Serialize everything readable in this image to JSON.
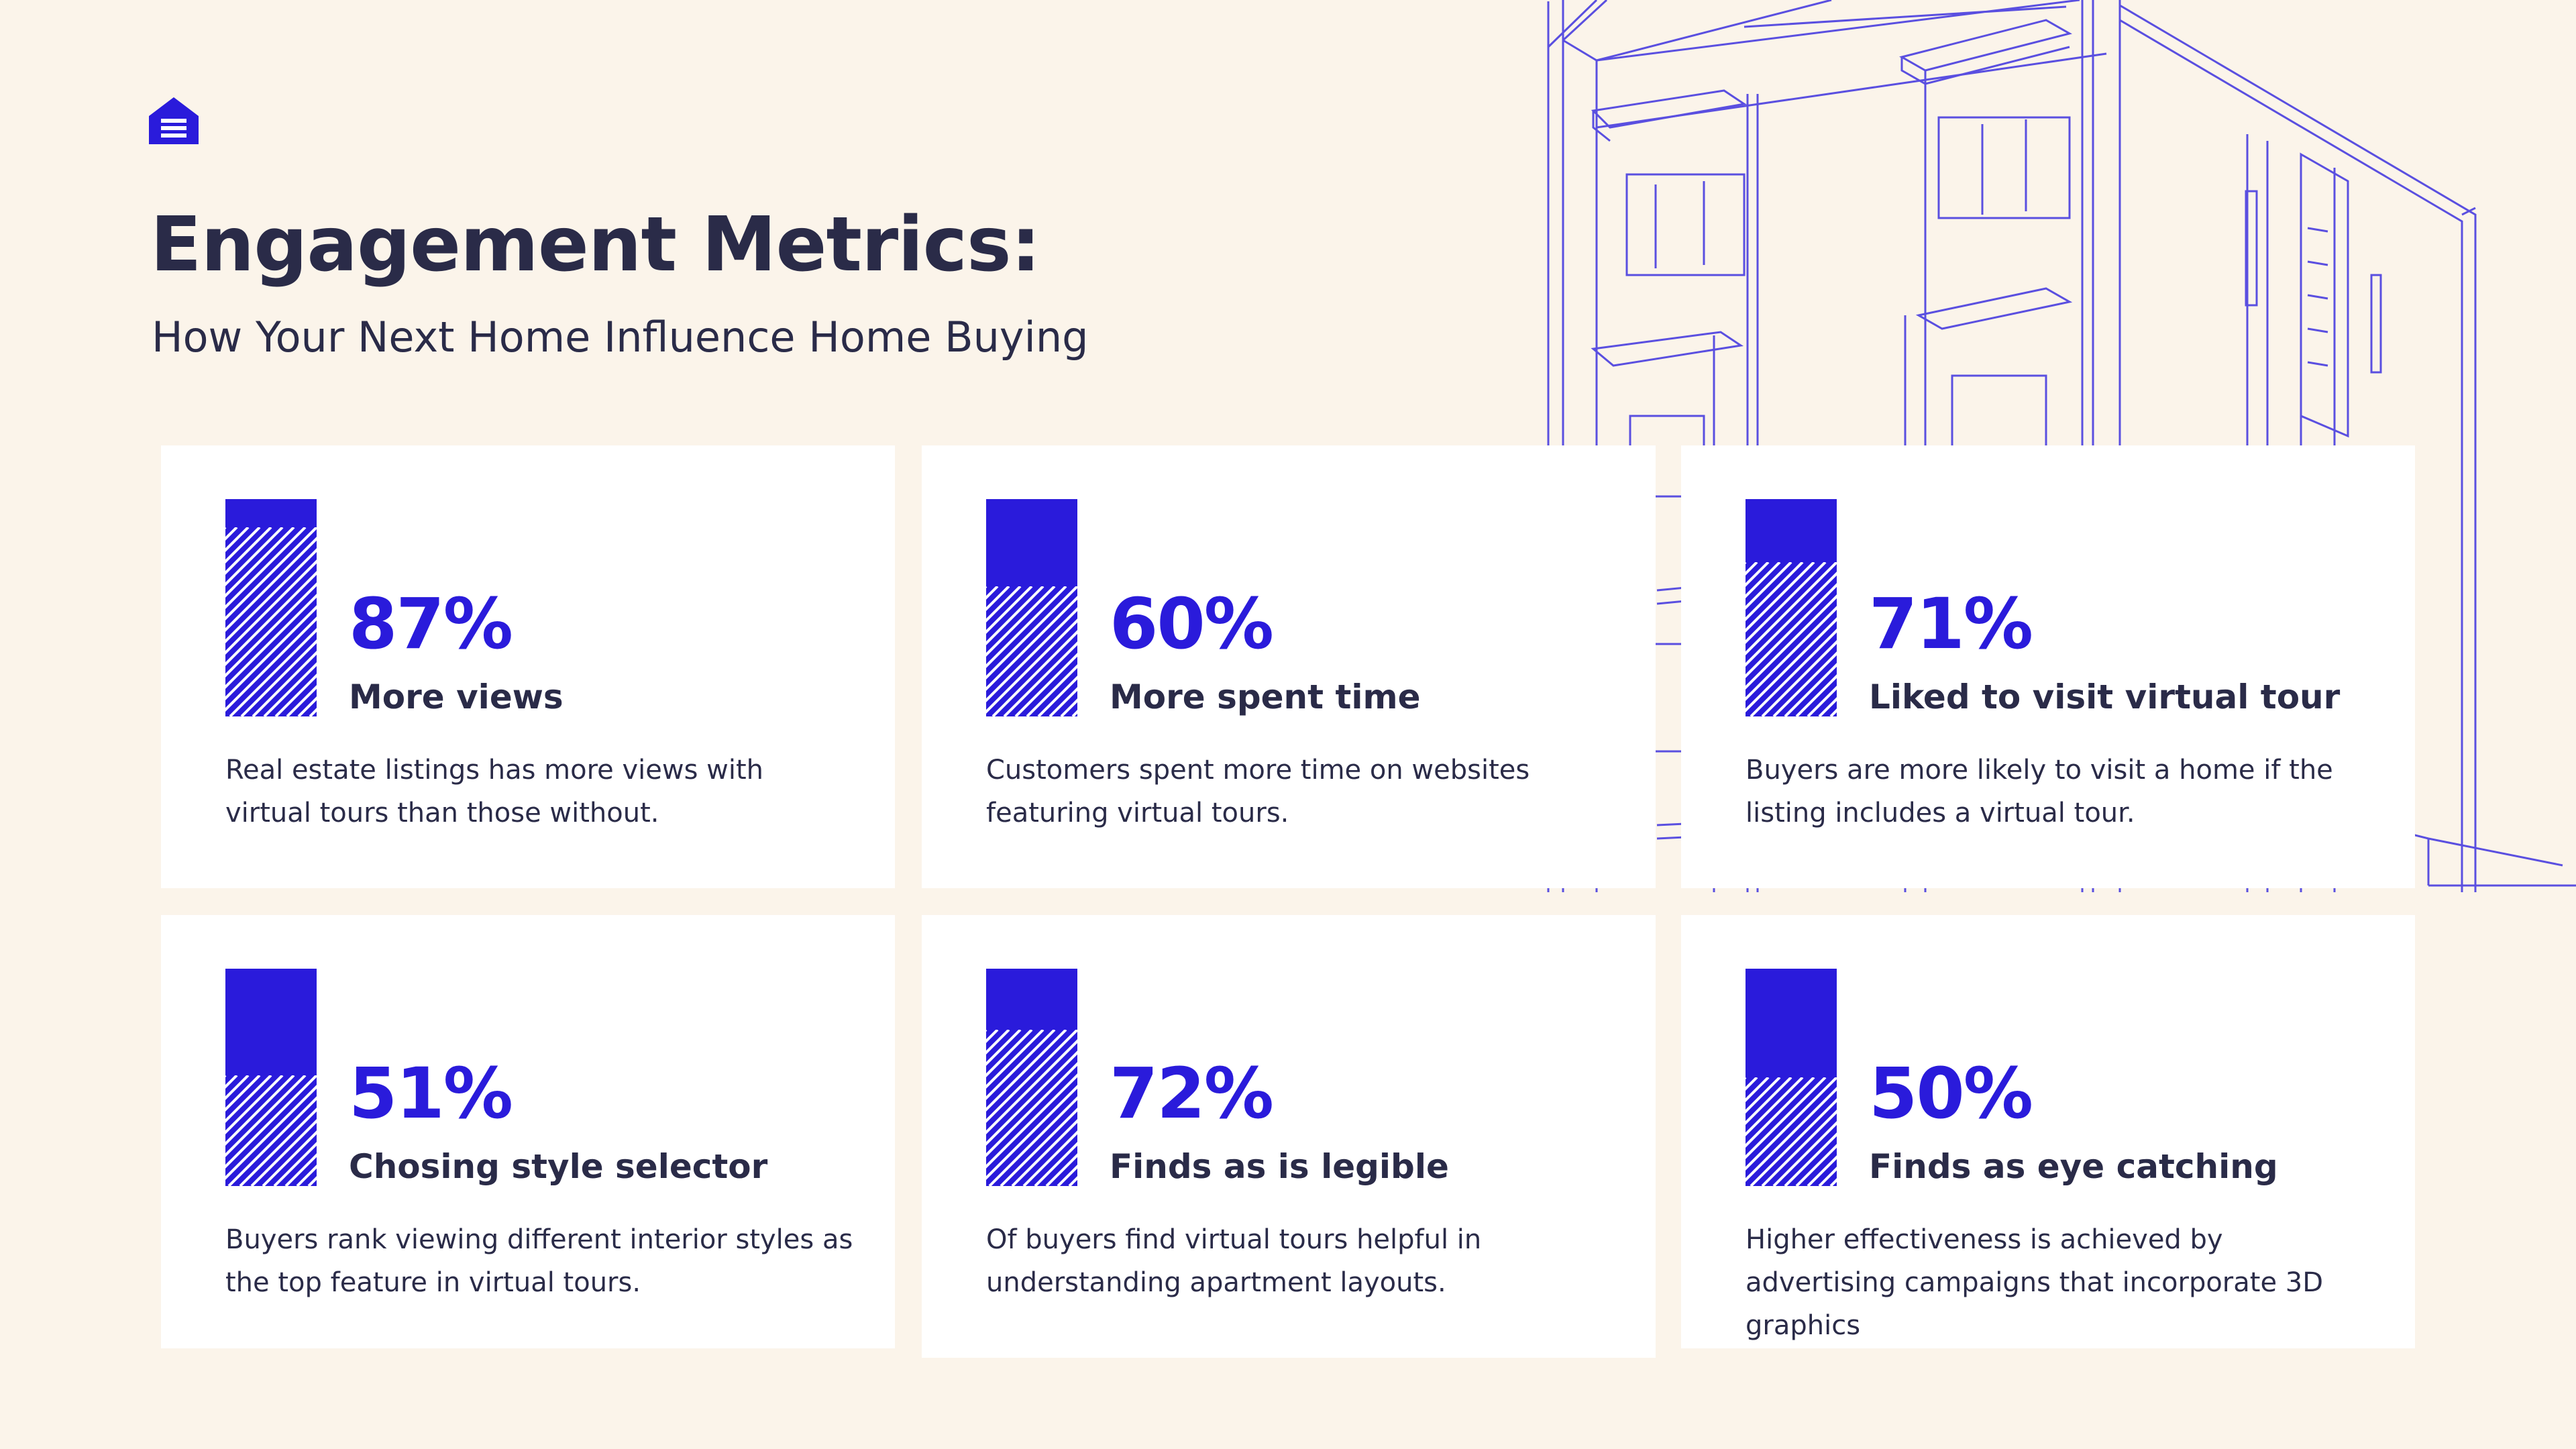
{
  "header": {
    "title": "Engagement Metrics:",
    "subtitle": "How Your Next Home Influence Home Buying"
  },
  "colors": {
    "background": "#fbf4ea",
    "accent": "#2a1bdb",
    "text": "#2a2b48",
    "card": "#ffffff",
    "line_art": "#5a4fe0"
  },
  "icons": {
    "logo": "house-document-icon",
    "illustration": "building-line-drawing"
  },
  "metrics": [
    {
      "percent_value": 87,
      "percent": "87%",
      "label": "More views",
      "description": "Real estate listings has more views with virtual tours than those without."
    },
    {
      "percent_value": 60,
      "percent": "60%",
      "label": "More spent time",
      "description": "Customers spent more time on websites featuring virtual tours."
    },
    {
      "percent_value": 71,
      "percent": "71%",
      "label": "Liked to visit virtual tour",
      "description": "Buyers are more likely to visit a home if the listing includes a virtual tour."
    },
    {
      "percent_value": 51,
      "percent": "51%",
      "label": "Chosing style selector",
      "description": "Buyers rank viewing different interior styles as the top feature in virtual tours."
    },
    {
      "percent_value": 72,
      "percent": "72%",
      "label": "Finds as is legible",
      "description": "Of buyers find virtual tours helpful in understanding apartment layouts."
    },
    {
      "percent_value": 50,
      "percent": "50%",
      "label": "Finds as eye catching",
      "description": "Higher effectiveness is achieved by advertising campaigns that incorporate 3D graphics"
    }
  ]
}
